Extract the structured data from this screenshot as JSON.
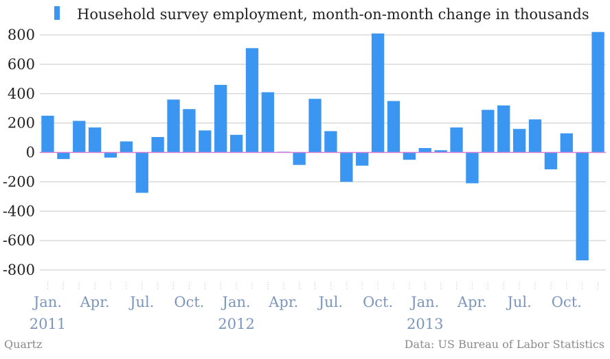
{
  "chart_data": {
    "type": "bar",
    "legend": "Household survey employment, month-on-month change in thousands",
    "legend_position": "top",
    "series": [
      {
        "name": "Household survey employment, month-on-month change in thousands",
        "color": "#3b96f1",
        "values": [
          250,
          -45,
          215,
          170,
          -35,
          75,
          -275,
          105,
          360,
          295,
          150,
          460,
          120,
          710,
          410,
          5,
          -85,
          365,
          145,
          -200,
          -90,
          810,
          350,
          -50,
          30,
          15,
          170,
          -210,
          290,
          320,
          160,
          225,
          -115,
          130,
          -735,
          820
        ]
      }
    ],
    "x": [
      "2011-01",
      "2011-02",
      "2011-03",
      "2011-04",
      "2011-05",
      "2011-06",
      "2011-07",
      "2011-08",
      "2011-09",
      "2011-10",
      "2011-11",
      "2011-12",
      "2012-01",
      "2012-02",
      "2012-03",
      "2012-04",
      "2012-05",
      "2012-06",
      "2012-07",
      "2012-08",
      "2012-09",
      "2012-10",
      "2012-11",
      "2012-12",
      "2013-01",
      "2013-02",
      "2013-03",
      "2013-04",
      "2013-05",
      "2013-06",
      "2013-07",
      "2013-08",
      "2013-09",
      "2013-10",
      "2013-11",
      "2013-12"
    ],
    "x_tick_labels": [
      {
        "month": "Jan.",
        "year": "2011"
      },
      {
        "month": "Apr.",
        "year": ""
      },
      {
        "month": "Jul.",
        "year": ""
      },
      {
        "month": "Oct.",
        "year": ""
      },
      {
        "month": "Jan.",
        "year": "2012"
      },
      {
        "month": "Apr.",
        "year": ""
      },
      {
        "month": "Jul.",
        "year": ""
      },
      {
        "month": "Oct.",
        "year": ""
      },
      {
        "month": "Jan.",
        "year": "2013"
      },
      {
        "month": "Apr.",
        "year": ""
      },
      {
        "month": "Jul.",
        "year": ""
      },
      {
        "month": "Oct.",
        "year": ""
      }
    ],
    "y_ticks": [
      "800",
      "600",
      "400",
      "200",
      "0",
      "-200",
      "-400",
      "-600",
      "-800"
    ],
    "ylim": [
      -800,
      800
    ],
    "grid": true,
    "zero_line_color": "#d97cd4",
    "grid_color": "#c8c8c8"
  },
  "footer": {
    "source_left": "Quartz",
    "source_right": "Data: US Bureau of Labor Statistics"
  }
}
